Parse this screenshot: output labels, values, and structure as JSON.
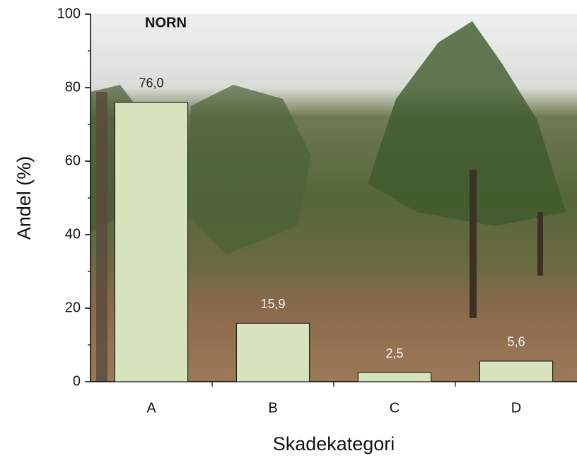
{
  "chart_data": {
    "type": "bar",
    "title": "NORN",
    "x_label": "Skadekategori",
    "y_label": "Andel (%)",
    "categories": [
      "A",
      "B",
      "C",
      "D"
    ],
    "values": [
      76.0,
      15.9,
      2.5,
      5.6
    ],
    "value_labels": [
      "76,0",
      "15,9",
      "2,5",
      "5,6"
    ],
    "color": "#d7e3bc",
    "ylim": [
      0,
      100
    ],
    "yticks": [
      0,
      20,
      40,
      60,
      80,
      100
    ],
    "minor_yticks": [
      10,
      30,
      50,
      70,
      90
    ]
  }
}
